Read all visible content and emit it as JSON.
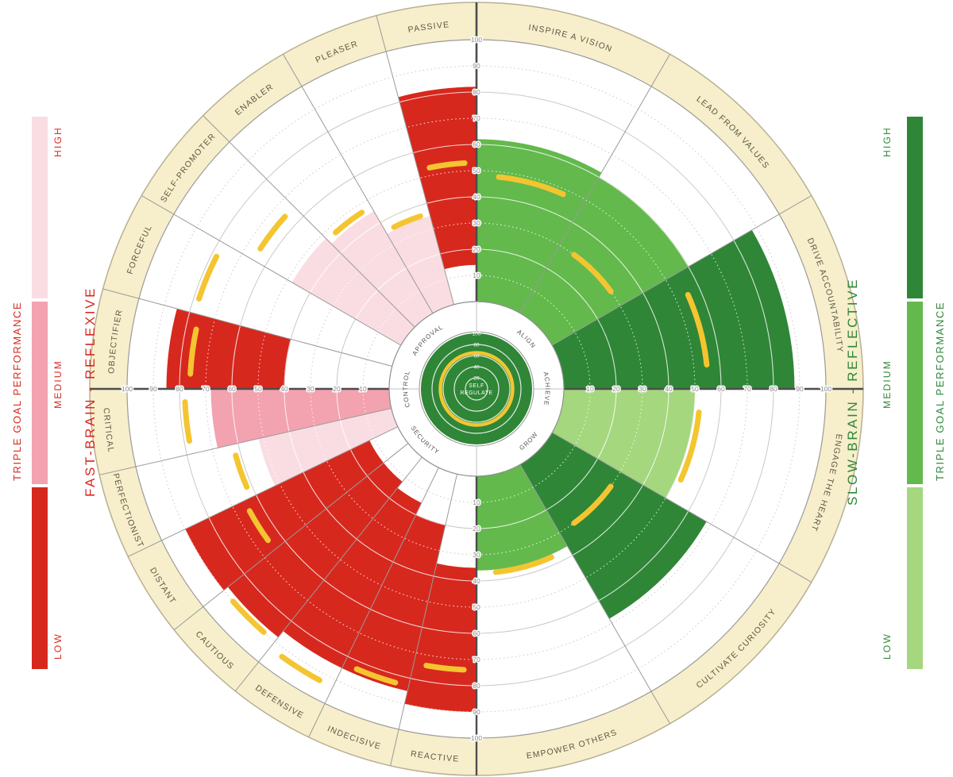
{
  "legend_left": {
    "title": "TRIPLE GOAL PERFORMANCE",
    "subtitle": "FAST-BRAIN - REFLEXIVE",
    "text_color": "#d7281e",
    "tiers": [
      {
        "label": "HIGH",
        "color": "#fadde2"
      },
      {
        "label": "MEDIUM",
        "color": "#f3a2b0"
      },
      {
        "label": "LOW",
        "color": "#d7281e"
      }
    ]
  },
  "legend_right": {
    "title": "TRIPLE GOAL PERFORMANCE",
    "subtitle": "SLOW-BRAIN - REFLECTIVE",
    "text_color": "#2f8637",
    "tiers": [
      {
        "label": "HIGH",
        "color": "#2f8637"
      },
      {
        "label": "MEDIUM",
        "color": "#63b94c"
      },
      {
        "label": "LOW",
        "color": "#a5d77e"
      }
    ]
  },
  "chart_data": {
    "type": "polar-sector",
    "scale": {
      "min": 0,
      "max": 100,
      "ticks": [
        10,
        20,
        30,
        40,
        50,
        60,
        70,
        80,
        90,
        100
      ]
    },
    "colors": {
      "cream": "#f7eecb",
      "ring_border": "#b7b092",
      "grid": "#c9c9c9",
      "grid_on_fill": "rgba(255,255,255,0.8)",
      "axis": "#4d4d4d",
      "boundary": "#9a9a9a",
      "marker": "#f4c530",
      "label": "#5c5a45",
      "tick_text": "#8a8a8a",
      "inner_label": "#555555"
    },
    "palettes": {
      "left": {
        "low": "#d7281e",
        "medium": "#f3a2b0",
        "high": "#fadde2"
      },
      "right": {
        "low": "#a5d77e",
        "medium": "#63b94c",
        "high": "#2f8637"
      }
    },
    "right_sectors": [
      {
        "label": "INSPIRE A VISION",
        "tier": "medium",
        "fill": [
          0,
          62
        ],
        "marker": 48
      },
      {
        "label": "LEAD FROM VALUES",
        "tier": "medium",
        "fill": [
          0,
          60
        ],
        "marker": 30
      },
      {
        "label": "DRIVE ACCOUNTABILITY",
        "tier": "high",
        "fill": [
          0,
          88
        ],
        "marker": 55
      },
      {
        "label": "ENGAGE THE HEART",
        "tier": "low",
        "fill": [
          0,
          50
        ],
        "marker": 52
      },
      {
        "label": "CULTIVATE CURIOSITY",
        "tier": "high",
        "fill": [
          0,
          68
        ],
        "marker": 30
      },
      {
        "label": "EMPOWER OTHERS",
        "tier": "medium",
        "fill": [
          0,
          36
        ],
        "marker": 37
      }
    ],
    "left_sectors": [
      {
        "label": "PASSIVE",
        "tier": "low",
        "fill": [
          14,
          82
        ],
        "marker": 53
      },
      {
        "label": "PLEASER",
        "tier": "high",
        "fill": [
          0,
          35
        ],
        "marker": 36
      },
      {
        "label": "ENABLER",
        "tier": "high",
        "fill": [
          0,
          45
        ],
        "marker": 47
      },
      {
        "label": "SELF-PROMOTER",
        "tier": "high",
        "fill": [
          0,
          48
        ],
        "marker": 65
      },
      {
        "label": "FORCEFUL",
        "tier": "high",
        "fill": null,
        "marker": 78
      },
      {
        "label": "OBJECTIFIER",
        "tier": "low",
        "fill": [
          40,
          85
        ],
        "marker": 76
      },
      {
        "label": "CRITICAL",
        "tier": "medium",
        "fill": [
          0,
          68
        ],
        "marker": 78
      },
      {
        "label": "PERFECTIONIST",
        "tier": "high",
        "fill": [
          0,
          52
        ],
        "marker": 62
      },
      {
        "label": "DISTANT",
        "tier": "low",
        "fill": [
          12,
          90
        ],
        "marker": 65
      },
      {
        "label": "CAUTIOUS",
        "tier": "low",
        "fill": [
          12,
          88
        ],
        "marker": 90
      },
      {
        "label": "DEFENSIVE",
        "tier": "low",
        "fill": [
          15,
          85
        ],
        "marker": 93
      },
      {
        "label": "INDECISIVE",
        "tier": "low",
        "fill": [
          20,
          85
        ],
        "marker": 83
      },
      {
        "label": "REACTIVE",
        "tier": "low",
        "fill": [
          35,
          90
        ],
        "marker": 74
      }
    ],
    "inner_ring": [
      {
        "label": "ALIGN",
        "angle": 45
      },
      {
        "label": "ACHIEVE",
        "angle": 90
      },
      {
        "label": "GROW",
        "angle": 135
      },
      {
        "label": "SECURITY",
        "angle": 225
      },
      {
        "label": "CONTROL",
        "angle": 270
      },
      {
        "label": "APPROVAL",
        "angle": 315
      }
    ],
    "center": {
      "lines": [
        "SELF",
        "REGULATE"
      ],
      "ticks": [
        20,
        40,
        60,
        80,
        100
      ],
      "marker": 65,
      "disc_color": "#2f8637"
    }
  }
}
